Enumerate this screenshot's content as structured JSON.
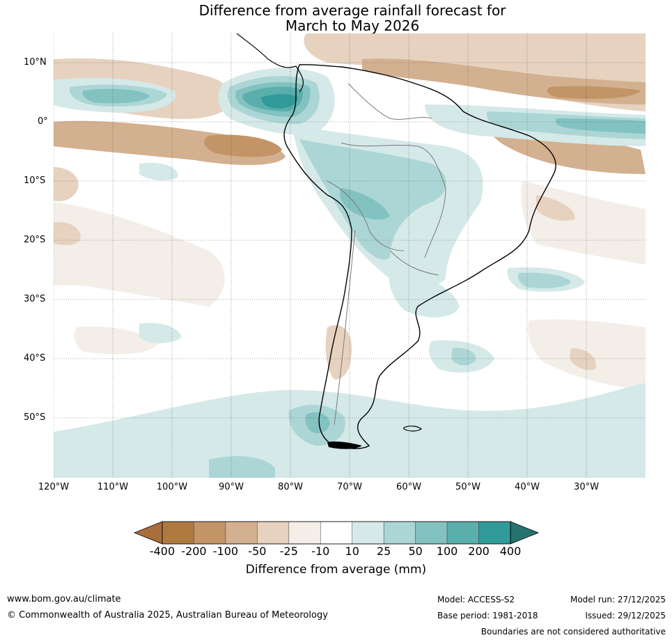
{
  "title": {
    "line1": "Difference from average rainfall forecast for",
    "line2": "March to May 2026"
  },
  "map": {
    "region": "South America",
    "lat_labels": [
      "10°N",
      "0°",
      "10°S",
      "20°S",
      "30°S",
      "40°S",
      "50°S"
    ],
    "lon_labels": [
      "120°W",
      "110°W",
      "100°W",
      "90°W",
      "80°W",
      "70°W",
      "60°W",
      "50°W",
      "40°W",
      "30°W"
    ]
  },
  "colorbar": {
    "ticks": [
      "-400",
      "-200",
      "-100",
      "-50",
      "-25",
      "-10",
      "10",
      "25",
      "50",
      "100",
      "200",
      "400"
    ],
    "colors": [
      "#a86f3c",
      "#b07940",
      "#c29466",
      "#d3b08f",
      "#e6d2bf",
      "#f3eee8",
      "#ffffff",
      "#d4e9e8",
      "#abd6d5",
      "#82c2c1",
      "#5aaeab",
      "#309b98",
      "#26726f"
    ],
    "label": "Difference from average (mm)"
  },
  "footer": {
    "website": "www.bom.gov.au/climate",
    "copyright": "© Commonwealth of Australia 2025, Australian Bureau of Meteorology",
    "model": "Model: ACCESS-S2",
    "base_period": "Base period: 1981-2018",
    "model_run": "Model run: 27/12/2025",
    "issued": "Issued: 29/12/2025",
    "disclaimer": "Boundaries are not considered authoritative"
  }
}
